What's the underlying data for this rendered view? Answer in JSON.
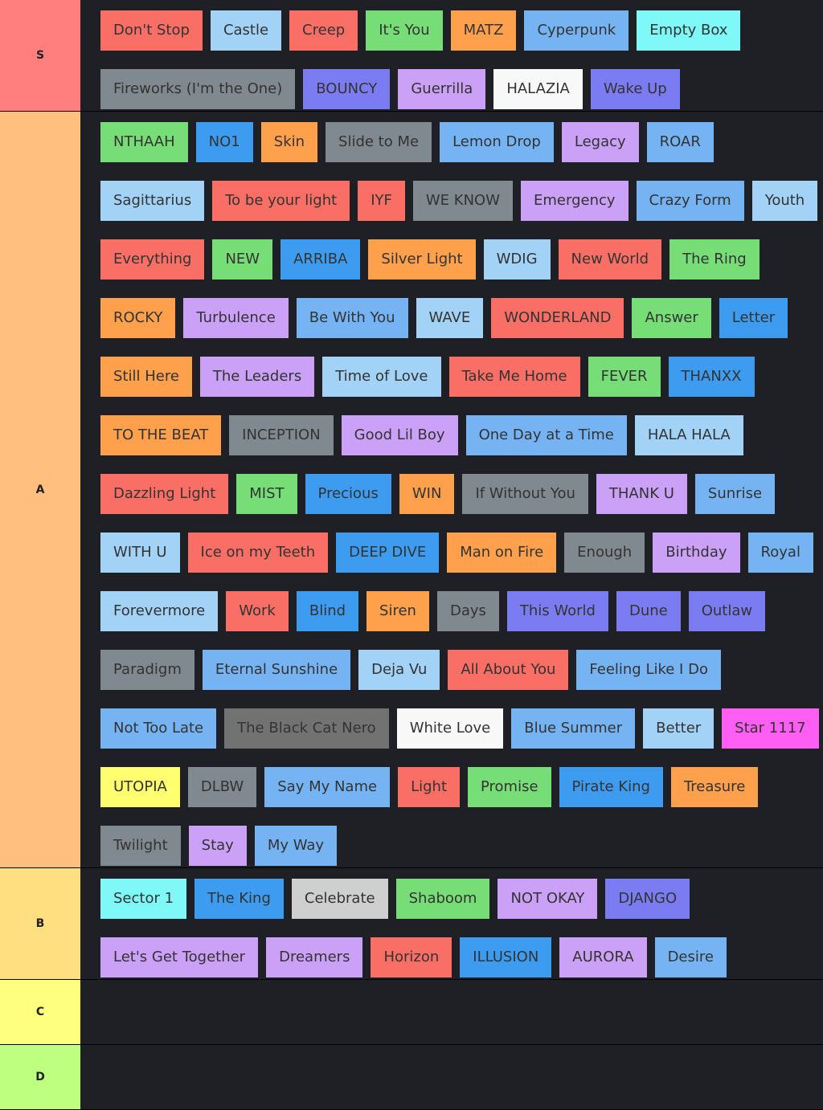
{
  "tiers": [
    {
      "label": "S",
      "color": "#ff7f7f",
      "rows": [
        [
          {
            "label": "Don't Stop",
            "color": "#fa6f65"
          },
          {
            "label": "Castle",
            "color": "#a3d2f7"
          },
          {
            "label": "Creep",
            "color": "#fa6f65"
          },
          {
            "label": "It's You",
            "color": "#77dd77"
          },
          {
            "label": "MATZ",
            "color": "#ffa04d"
          },
          {
            "label": "Cyperpunk",
            "color": "#76b3f2"
          },
          {
            "label": "Empty Box",
            "color": "#7ff8f8"
          }
        ],
        [
          {
            "label": "Fireworks (I'm the One)",
            "color": "#808890"
          },
          {
            "label": "BOUNCY",
            "color": "#7c7cf2"
          },
          {
            "label": "Guerrilla",
            "color": "#cba1f7"
          },
          {
            "label": "HALAZIA",
            "color": "#f8f8f8"
          },
          {
            "label": "Wake Up",
            "color": "#7c7cf2"
          }
        ]
      ]
    },
    {
      "label": "A",
      "color": "#ffbf7f",
      "rows": [
        [
          {
            "label": "NTHAAH",
            "color": "#77dd77"
          },
          {
            "label": "NO1",
            "color": "#3d9cf0"
          },
          {
            "label": "Skin",
            "color": "#ffa04d"
          },
          {
            "label": "Slide to Me",
            "color": "#808890"
          },
          {
            "label": "Lemon Drop",
            "color": "#76b3f2"
          },
          {
            "label": "Legacy",
            "color": "#cba1f7"
          },
          {
            "label": "ROAR",
            "color": "#76b3f2"
          }
        ],
        [
          {
            "label": "Sagittarius",
            "color": "#a3d2f7"
          },
          {
            "label": "To be your light",
            "color": "#fa6f65"
          },
          {
            "label": "IYF",
            "color": "#fa6f65"
          },
          {
            "label": "WE KNOW",
            "color": "#808890"
          },
          {
            "label": "Emergency",
            "color": "#cba1f7"
          },
          {
            "label": "Crazy Form",
            "color": "#76b3f2"
          },
          {
            "label": "Youth",
            "color": "#a3d2f7"
          }
        ],
        [
          {
            "label": "Everything",
            "color": "#fa6f65"
          },
          {
            "label": "NEW",
            "color": "#77dd77"
          },
          {
            "label": "ARRIBA",
            "color": "#3d9cf0"
          },
          {
            "label": "Silver Light",
            "color": "#ffa04d"
          },
          {
            "label": "WDIG",
            "color": "#a3d2f7"
          },
          {
            "label": "New World",
            "color": "#fa6f65"
          },
          {
            "label": "The Ring",
            "color": "#77dd77"
          }
        ],
        [
          {
            "label": "ROCKY",
            "color": "#ffa04d"
          },
          {
            "label": "Turbulence",
            "color": "#cba1f7"
          },
          {
            "label": "Be With You",
            "color": "#76b3f2"
          },
          {
            "label": "WAVE",
            "color": "#a3d2f7"
          },
          {
            "label": "WONDERLAND",
            "color": "#fa6f65"
          },
          {
            "label": "Answer",
            "color": "#77dd77"
          },
          {
            "label": "Letter",
            "color": "#3d9cf0"
          }
        ],
        [
          {
            "label": "Still Here",
            "color": "#ffa04d"
          },
          {
            "label": "The Leaders",
            "color": "#cba1f7"
          },
          {
            "label": "Time of Love",
            "color": "#a3d2f7"
          },
          {
            "label": "Take Me Home",
            "color": "#fa6f65"
          },
          {
            "label": "FEVER",
            "color": "#77dd77"
          },
          {
            "label": "THANXX",
            "color": "#3d9cf0"
          }
        ],
        [
          {
            "label": "TO THE BEAT",
            "color": "#ffa04d"
          },
          {
            "label": "INCEPTION",
            "color": "#808890"
          },
          {
            "label": "Good Lil Boy",
            "color": "#cba1f7"
          },
          {
            "label": "One Day at a Time",
            "color": "#76b3f2"
          },
          {
            "label": "HALA HALA",
            "color": "#a3d2f7"
          }
        ],
        [
          {
            "label": "Dazzling Light",
            "color": "#fa6f65"
          },
          {
            "label": "MIST",
            "color": "#77dd77"
          },
          {
            "label": "Precious",
            "color": "#3d9cf0"
          },
          {
            "label": "WIN",
            "color": "#ffa04d"
          },
          {
            "label": "If Without You",
            "color": "#808890"
          },
          {
            "label": "THANK U",
            "color": "#cba1f7"
          },
          {
            "label": "Sunrise",
            "color": "#76b3f2"
          }
        ],
        [
          {
            "label": "WITH U",
            "color": "#a3d2f7"
          },
          {
            "label": "Ice on my Teeth",
            "color": "#fa6f65"
          },
          {
            "label": "DEEP DIVE",
            "color": "#3d9cf0"
          },
          {
            "label": "Man on Fire",
            "color": "#ffa04d"
          },
          {
            "label": "Enough",
            "color": "#808890"
          },
          {
            "label": "Birthday",
            "color": "#cba1f7"
          },
          {
            "label": "Royal",
            "color": "#76b3f2"
          }
        ],
        [
          {
            "label": "Forevermore",
            "color": "#a3d2f7"
          },
          {
            "label": "Work",
            "color": "#fa6f65"
          },
          {
            "label": "Blind",
            "color": "#3d9cf0"
          },
          {
            "label": "Siren",
            "color": "#ffa04d"
          },
          {
            "label": "Days",
            "color": "#808890"
          },
          {
            "label": "This World",
            "color": "#7c7cf2"
          },
          {
            "label": "Dune",
            "color": "#7c7cf2"
          },
          {
            "label": "Outlaw",
            "color": "#7c7cf2"
          }
        ],
        [
          {
            "label": "Paradigm",
            "color": "#808890"
          },
          {
            "label": "Eternal Sunshine",
            "color": "#76b3f2"
          },
          {
            "label": "Deja Vu",
            "color": "#a3d2f7"
          },
          {
            "label": "All About You",
            "color": "#fa6f65"
          },
          {
            "label": "Feeling Like I Do",
            "color": "#76b3f2"
          }
        ],
        [
          {
            "label": "Not Too Late",
            "color": "#76b3f2"
          },
          {
            "label": "The Black Cat Nero",
            "color": "#727272"
          },
          {
            "label": "White Love",
            "color": "#f8f8f8"
          },
          {
            "label": "Blue Summer",
            "color": "#76b3f2"
          },
          {
            "label": "Better",
            "color": "#a3d2f7"
          },
          {
            "label": "Star 1117",
            "color": "#ff5ef4"
          }
        ],
        [
          {
            "label": "UTOPIA",
            "color": "#ffff70"
          },
          {
            "label": "DLBW",
            "color": "#808890"
          },
          {
            "label": "Say My Name",
            "color": "#76b3f2"
          },
          {
            "label": "Light",
            "color": "#fa6f65"
          },
          {
            "label": "Promise",
            "color": "#77dd77"
          },
          {
            "label": "Pirate King",
            "color": "#3d9cf0"
          },
          {
            "label": "Treasure",
            "color": "#ffa04d"
          }
        ],
        [
          {
            "label": "Twilight",
            "color": "#808890"
          },
          {
            "label": "Stay",
            "color": "#cba1f7"
          },
          {
            "label": "My Way",
            "color": "#76b3f2"
          }
        ]
      ]
    },
    {
      "label": "B",
      "color": "#ffdf7f",
      "rows": [
        [
          {
            "label": "Sector 1",
            "color": "#7ff8f8"
          },
          {
            "label": "The King",
            "color": "#3d9cf0"
          },
          {
            "label": "Celebrate",
            "color": "#cfcfcf"
          },
          {
            "label": "Shaboom",
            "color": "#77dd77"
          },
          {
            "label": "NOT OKAY",
            "color": "#cba1f7"
          },
          {
            "label": "DJANGO",
            "color": "#7c7cf2"
          }
        ],
        [
          {
            "label": "Let's Get Together",
            "color": "#cba1f7"
          },
          {
            "label": "Dreamers",
            "color": "#cba1f7"
          },
          {
            "label": "Horizon",
            "color": "#fa6f65"
          },
          {
            "label": "ILLUSION",
            "color": "#3d9cf0"
          },
          {
            "label": "AURORA",
            "color": "#cba1f7"
          },
          {
            "label": "Desire",
            "color": "#76b3f2"
          }
        ]
      ]
    },
    {
      "label": "C",
      "color": "#ffff7f",
      "rows": []
    },
    {
      "label": "D",
      "color": "#bfff7f",
      "rows": []
    }
  ]
}
